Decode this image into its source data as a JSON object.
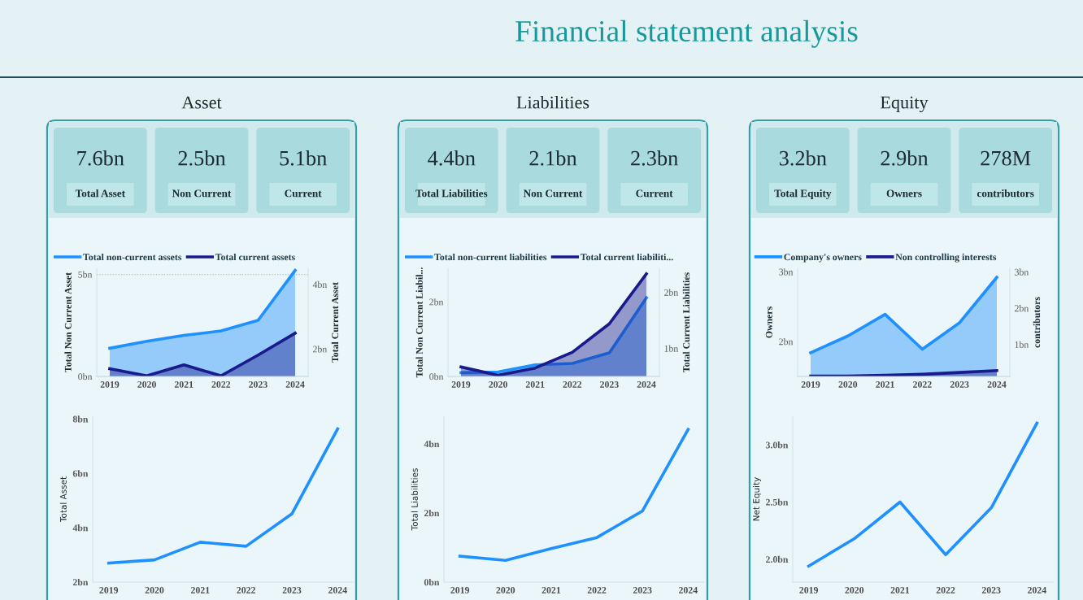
{
  "chart_data": [
    {
      "type": "other",
      "title": "Financial statement analysis"
    },
    {
      "type": "other",
      "title": "Asset",
      "categories": [
        "Total Asset",
        "Non Current",
        "Current"
      ],
      "value_labels": [
        "7.6bn",
        "2.5bn",
        "5.1bn"
      ]
    },
    {
      "type": "other",
      "title": "Liabilities",
      "categories": [
        "Total Liabilities",
        "Non Current",
        "Current"
      ],
      "value_labels": [
        "4.4bn",
        "2.1bn",
        "2.3bn"
      ]
    },
    {
      "type": "other",
      "title": "Equity",
      "categories": [
        "Total Equity",
        "Owners",
        "contributors"
      ],
      "value_labels": [
        "3.2bn",
        "2.9bn",
        "278M"
      ]
    },
    {
      "type": "area",
      "categories": [
        "2019",
        "2020",
        "2021",
        "2022",
        "2023",
        "2024"
      ],
      "ylabel": "Total Non Current Asset",
      "y2label": "Total Current Asset",
      "ylim": [
        0,
        5.3
      ],
      "yticks": [
        {
          "value": 0,
          "label": "0bn"
        },
        {
          "value": 5,
          "label": "5bn"
        }
      ],
      "y2lim": [
        1.15,
        4.5
      ],
      "y2ticks": [
        {
          "value": 2,
          "label": "2bn"
        },
        {
          "value": 4,
          "label": "4bn"
        }
      ],
      "grid": "y",
      "legend": "top left",
      "series": [
        {
          "name": "Total non-current assets",
          "color": "#1e90ff",
          "values": [
            1.38,
            1.72,
            2.01,
            2.23,
            2.75,
            5.2
          ]
        },
        {
          "name": "Total current assets",
          "color": "#1a1a8c",
          "axis": "y2",
          "values": [
            1.39,
            1.17,
            1.51,
            1.17,
            1.81,
            2.49
          ]
        }
      ]
    },
    {
      "type": "area",
      "categories": [
        "2019",
        "2020",
        "2021",
        "2022",
        "2023",
        "2024"
      ],
      "ylabel": "Total Non Current Liabil...",
      "y2label": "Total Current Liabilities",
      "ylim": [
        0,
        2.9
      ],
      "yticks": [
        {
          "value": 0,
          "label": "0bn"
        },
        {
          "value": 2,
          "label": "2bn"
        }
      ],
      "y2lim": [
        0.5,
        2.43
      ],
      "y2ticks": [
        {
          "value": 1,
          "label": "1bn"
        },
        {
          "value": 2,
          "label": "2bn"
        }
      ],
      "legend": "top left",
      "series": [
        {
          "name": "Total non-current liabilities",
          "color": "#1e90ff",
          "values": [
            0.1,
            0.12,
            0.31,
            0.35,
            0.63,
            2.11
          ]
        },
        {
          "name": "Total current liabiliti...",
          "color": "#1a1a8c",
          "axis": "y2",
          "values": [
            0.67,
            0.52,
            0.65,
            0.93,
            1.44,
            2.33
          ]
        }
      ]
    },
    {
      "type": "area",
      "categories": [
        "2019",
        "2020",
        "2021",
        "2022",
        "2023",
        "2024"
      ],
      "ylabel": "Owners",
      "y2label": "contributors",
      "ylim": [
        1.5,
        3.05
      ],
      "yticks": [
        {
          "value": 2,
          "label": "2bn"
        },
        {
          "value": 3,
          "label": "3bn"
        }
      ],
      "y2lim": [
        0.12,
        3.1
      ],
      "y2ticks": [
        {
          "value": 1,
          "label": "1bn"
        },
        {
          "value": 2,
          "label": "2bn"
        },
        {
          "value": 3,
          "label": "3bn"
        }
      ],
      "legend": "top left",
      "series": [
        {
          "name": "Company's owners",
          "color": "#1e90ff",
          "values": [
            1.84,
            2.08,
            2.39,
            1.89,
            2.27,
            2.92
          ]
        },
        {
          "name": "Non controlling interests",
          "color": "#1a1a8c",
          "axis": "y2",
          "values": [
            0.13,
            0.13,
            0.15,
            0.18,
            0.23,
            0.28
          ]
        }
      ]
    },
    {
      "type": "line",
      "categories": [
        "2019",
        "2020",
        "2021",
        "2022",
        "2023",
        "2024"
      ],
      "ylabel": "Total Asset",
      "ylim": [
        2,
        8.1
      ],
      "yticks": [
        {
          "value": 2,
          "label": "2bn"
        },
        {
          "value": 4,
          "label": "4bn"
        },
        {
          "value": 6,
          "label": "6bn"
        },
        {
          "value": 8,
          "label": "8bn"
        }
      ],
      "series": [
        {
          "color": "#1e90ff",
          "values": [
            2.7,
            2.82,
            3.47,
            3.32,
            4.51,
            7.64
          ]
        }
      ]
    },
    {
      "type": "line",
      "categories": [
        "2019",
        "2020",
        "2021",
        "2022",
        "2023",
        "2024"
      ],
      "ylabel": "Total Liabilities",
      "ylim": [
        0,
        4.8
      ],
      "yticks": [
        {
          "value": 0,
          "label": "0bn"
        },
        {
          "value": 2,
          "label": "2bn"
        },
        {
          "value": 4,
          "label": "4bn"
        }
      ],
      "series": [
        {
          "color": "#1e90ff",
          "values": [
            0.75,
            0.63,
            0.97,
            1.29,
            2.06,
            4.42
          ]
        }
      ]
    },
    {
      "type": "line",
      "categories": [
        "2019",
        "2020",
        "2021",
        "2022",
        "2023",
        "2024"
      ],
      "ylabel": "Net Equity",
      "ylim": [
        1.8,
        3.25
      ],
      "yticks": [
        {
          "value": 2.0,
          "label": "2.0bn"
        },
        {
          "value": 2.5,
          "label": "2.5bn"
        },
        {
          "value": 3.0,
          "label": "3.0bn"
        }
      ],
      "series": [
        {
          "color": "#1e90ff",
          "values": [
            1.94,
            2.18,
            2.5,
            2.04,
            2.45,
            3.19
          ]
        }
      ]
    }
  ]
}
